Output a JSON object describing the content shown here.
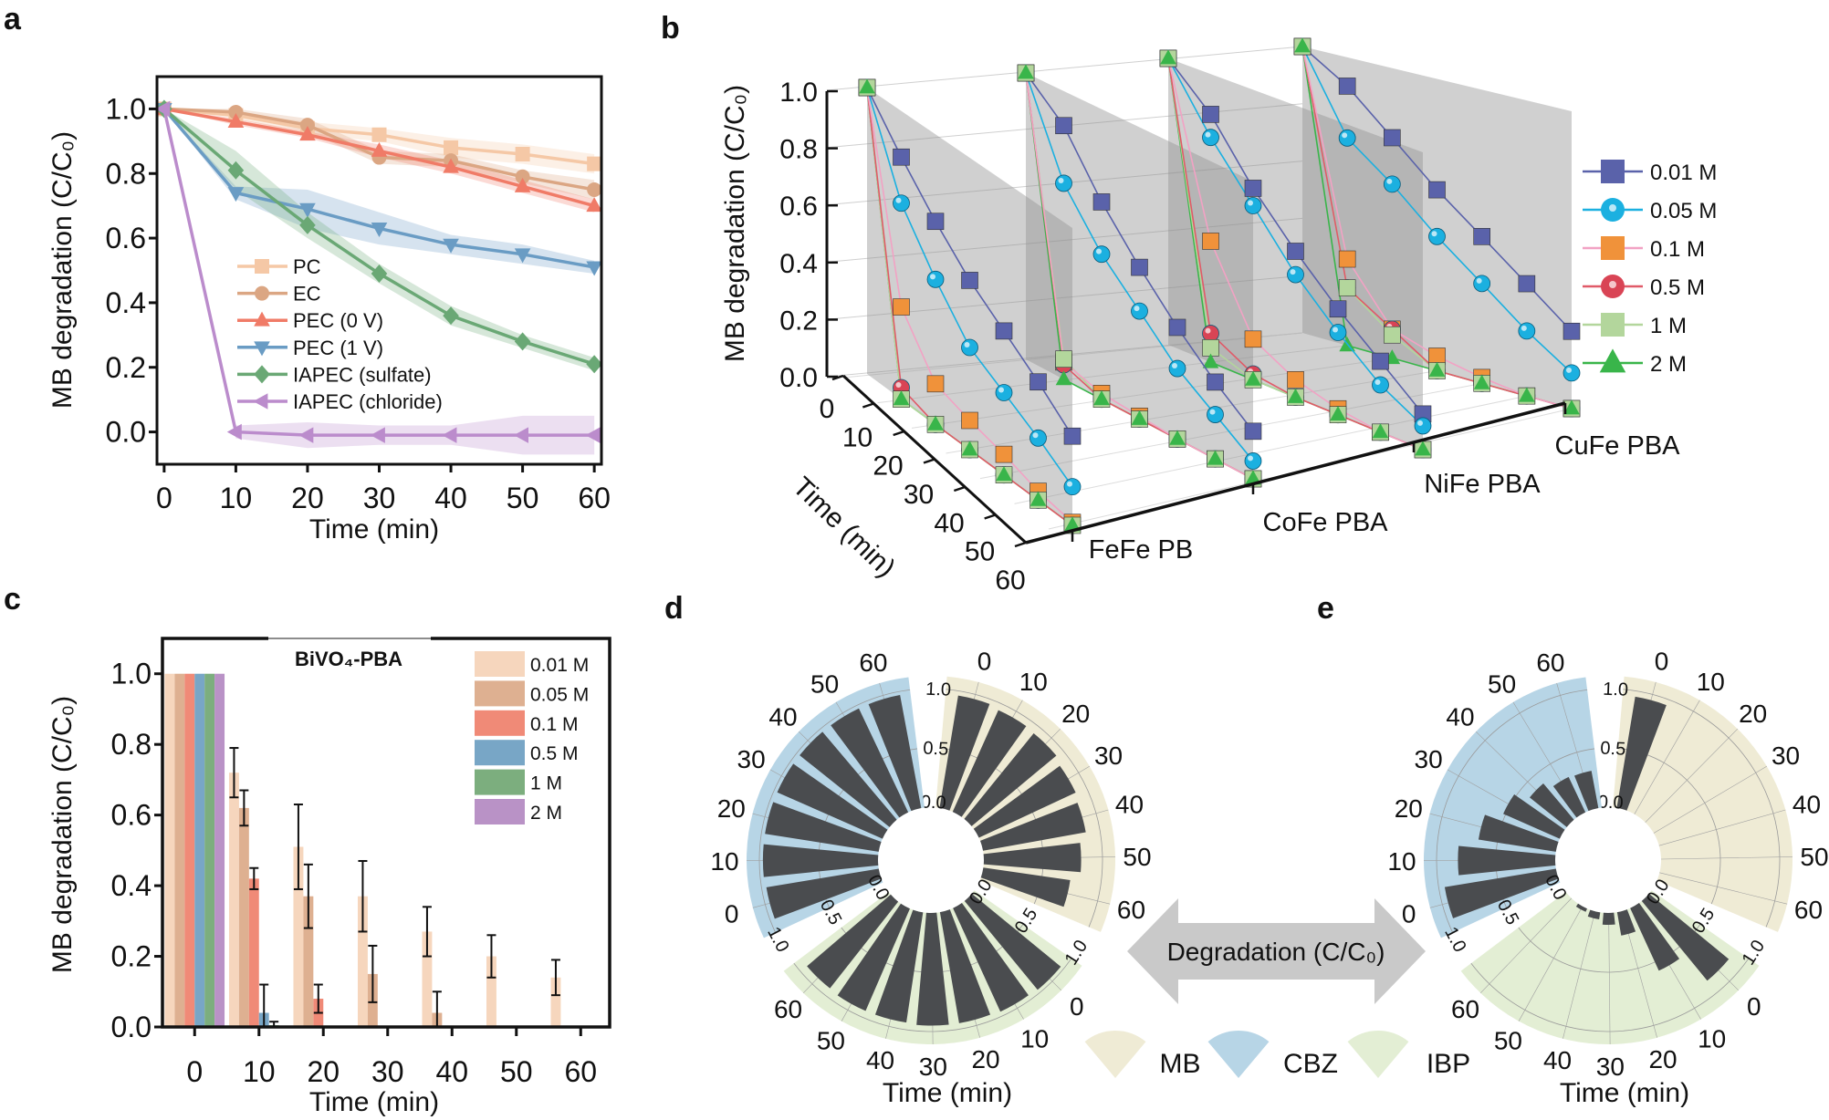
{
  "panel_labels": [
    "a",
    "b",
    "c",
    "d",
    "e"
  ],
  "chart_data": [
    {
      "panel": "a",
      "type": "line",
      "xlabel": "Time (min)",
      "ylabel": "MB degradation (C/C₀)",
      "xlim": [
        -1,
        61
      ],
      "ylim": [
        -0.1,
        1.1
      ],
      "xticks": [
        "0",
        "10",
        "20",
        "30",
        "40",
        "50",
        "60"
      ],
      "yticks": [
        "0.0",
        "0.2",
        "0.4",
        "0.6",
        "0.8",
        "1.0"
      ],
      "x": [
        0,
        10,
        20,
        30,
        40,
        50,
        60
      ],
      "legend_position": "center-left",
      "series": [
        {
          "name": "PC",
          "color": "#f5c8a6",
          "marker": "square",
          "values": [
            1.0,
            0.98,
            0.94,
            0.92,
            0.88,
            0.86,
            0.83
          ],
          "error": [
            0,
            0.01,
            0.02,
            0.02,
            0.03,
            0.03,
            0.03
          ]
        },
        {
          "name": "EC",
          "color": "#dba683",
          "marker": "circle",
          "values": [
            1.0,
            0.99,
            0.95,
            0.85,
            0.84,
            0.79,
            0.75
          ],
          "error": [
            0,
            0.01,
            0.02,
            0.02,
            0.02,
            0.02,
            0.03
          ]
        },
        {
          "name": "PEC (0 V)",
          "color": "#f07b67",
          "marker": "triangle-up",
          "values": [
            1.0,
            0.96,
            0.92,
            0.87,
            0.82,
            0.76,
            0.7
          ],
          "error": [
            0,
            0.01,
            0.01,
            0.02,
            0.02,
            0.02,
            0.02
          ]
        },
        {
          "name": "PEC (1 V)",
          "color": "#6a9cc4",
          "marker": "triangle-down",
          "values": [
            1.0,
            0.74,
            0.69,
            0.63,
            0.58,
            0.55,
            0.51
          ],
          "error": [
            0,
            0.02,
            0.06,
            0.05,
            0.03,
            0.03,
            0.02
          ]
        },
        {
          "name": "IAPEC (sulfate)",
          "color": "#6aa875",
          "marker": "diamond",
          "values": [
            1.0,
            0.81,
            0.64,
            0.49,
            0.36,
            0.28,
            0.21
          ],
          "error": [
            0,
            0.06,
            0.04,
            0.03,
            0.03,
            0.02,
            0.02
          ]
        },
        {
          "name": "IAPEC (chloride)",
          "color": "#bb8ccc",
          "marker": "triangle-left",
          "values": [
            1.0,
            0.0,
            -0.01,
            -0.01,
            -0.01,
            -0.01,
            -0.01
          ],
          "error": [
            0,
            0.02,
            0.04,
            0.03,
            0.03,
            0.06,
            0.06
          ]
        }
      ]
    },
    {
      "panel": "b",
      "type": "line3d",
      "ylabel": "MB degradation (C/C₀)",
      "tlabel": "Time (min)",
      "zlim": [
        0,
        1
      ],
      "zticks": [
        "0.0",
        "0.2",
        "0.4",
        "0.6",
        "0.8",
        "1.0"
      ],
      "tticks": [
        "0",
        "10",
        "20",
        "30",
        "40",
        "50",
        "60"
      ],
      "t": [
        0,
        10,
        20,
        30,
        40,
        50,
        60
      ],
      "categories": [
        "FeFe PB",
        "CoFe PBA",
        "NiFe PBA",
        "CuFe PBA"
      ],
      "legend_position": "right",
      "series": [
        {
          "name": "0.01 M",
          "color": "#5a62aa",
          "line_color": "#5a62aa",
          "marker": "cube",
          "values": [
            [
              1.0,
              0.84,
              0.7,
              0.58,
              0.49,
              0.4,
              0.3
            ],
            [
              1.0,
              0.88,
              0.68,
              0.52,
              0.38,
              0.26,
              0.16
            ],
            [
              1.0,
              0.86,
              0.66,
              0.5,
              0.36,
              0.24,
              0.12
            ],
            [
              1.0,
              0.9,
              0.76,
              0.62,
              0.5,
              0.38,
              0.26
            ]
          ]
        },
        {
          "name": "0.05 M",
          "color": "#1bb0e0",
          "line_color": "#1bb0e0",
          "marker": "sphere",
          "values": [
            [
              1.0,
              0.68,
              0.5,
              0.35,
              0.28,
              0.21,
              0.13
            ],
            [
              1.0,
              0.68,
              0.5,
              0.37,
              0.24,
              0.15,
              0.06
            ],
            [
              1.0,
              0.78,
              0.6,
              0.42,
              0.28,
              0.16,
              0.08
            ],
            [
              1.0,
              0.72,
              0.6,
              0.46,
              0.34,
              0.22,
              0.12
            ]
          ]
        },
        {
          "name": "0.1 M",
          "color": "#f0923a",
          "line_color": "#f2a2c4",
          "marker": "cube",
          "values": [
            [
              1.0,
              0.32,
              0.14,
              0.1,
              0.07,
              0.03,
              0.01
            ],
            [
              1.0,
              0.06,
              0.02,
              0.01,
              0.0,
              0.0,
              0.0
            ],
            [
              1.0,
              0.42,
              0.14,
              0.06,
              0.02,
              0.0,
              0.0
            ],
            [
              1.0,
              0.3,
              0.1,
              0.05,
              0.02,
              0.0,
              0.0
            ]
          ]
        },
        {
          "name": "0.5 M",
          "color": "#d94455",
          "line_color": "#e05a68",
          "marker": "sphere",
          "values": [
            [
              1.0,
              0.04,
              0.0,
              0.0,
              0.0,
              0.0,
              0.0
            ],
            [
              1.0,
              0.05,
              0.0,
              0.0,
              0.0,
              0.0,
              0.0
            ],
            [
              1.0,
              0.1,
              0.02,
              0.0,
              0.0,
              0.0,
              0.0
            ],
            [
              1.0,
              0.2,
              0.1,
              0.0,
              0.0,
              0.0,
              0.0
            ]
          ]
        },
        {
          "name": "1 M",
          "color": "#b3d69c",
          "line_color": "#b3d69c",
          "marker": "cube",
          "values": [
            [
              1.0,
              0.0,
              0.0,
              0.0,
              0.0,
              0.0,
              0.0
            ],
            [
              1.0,
              0.07,
              0.0,
              0.0,
              0.0,
              0.0,
              0.0
            ],
            [
              1.0,
              0.05,
              0.0,
              0.0,
              0.0,
              0.0,
              0.0
            ],
            [
              1.0,
              0.2,
              0.08,
              0.0,
              0.0,
              0.0,
              0.0
            ]
          ]
        },
        {
          "name": "2 M",
          "color": "#39b54a",
          "line_color": "#39b54a",
          "marker": "triangle",
          "values": [
            [
              1.0,
              0.0,
              0.0,
              0.0,
              0.0,
              0.0,
              0.0
            ],
            [
              1.0,
              0.0,
              0.0,
              0.0,
              0.0,
              0.0,
              0.0
            ],
            [
              1.0,
              0.0,
              0.0,
              0.0,
              0.0,
              0.0,
              0.0
            ],
            [
              1.0,
              0.0,
              0.0,
              0.0,
              0.0,
              0.0,
              0.0
            ]
          ]
        }
      ]
    },
    {
      "panel": "c",
      "type": "bar",
      "title": "BiVO₄-PBA",
      "xlabel": "Time (min)",
      "ylabel": "MB degradation (C/C₀)",
      "xlim": [
        -5,
        64.5
      ],
      "ylim": [
        0,
        1.1
      ],
      "xticks": [
        "0",
        "10",
        "20",
        "30",
        "40",
        "50",
        "60"
      ],
      "yticks": [
        "0.0",
        "0.2",
        "0.4",
        "0.6",
        "0.8",
        "1.0"
      ],
      "x": [
        0,
        10,
        20,
        30,
        40,
        50,
        60
      ],
      "legend_position": "top-right",
      "series": [
        {
          "name": "0.01 M",
          "color": "#f6d6bd",
          "values": [
            1.0,
            0.72,
            0.51,
            0.37,
            0.27,
            0.2,
            0.14
          ],
          "error": [
            0,
            0.07,
            0.12,
            0.1,
            0.07,
            0.06,
            0.05
          ]
        },
        {
          "name": "0.05 M",
          "color": "#deb091",
          "values": [
            1.0,
            0.62,
            0.37,
            0.15,
            0.04,
            0,
            0
          ],
          "error": [
            0,
            0.05,
            0.09,
            0.08,
            0.06,
            0,
            0
          ]
        },
        {
          "name": "0.1 M",
          "color": "#f08a77",
          "values": [
            1.0,
            0.42,
            0.08,
            0,
            0,
            0,
            0
          ],
          "error": [
            0,
            0.03,
            0.04,
            0,
            0,
            0,
            0
          ]
        },
        {
          "name": "0.5 M",
          "color": "#78a6c6",
          "values": [
            1.0,
            0.04,
            0,
            0,
            0,
            0,
            0
          ],
          "error": [
            0,
            0.08,
            0,
            0,
            0,
            0,
            0
          ]
        },
        {
          "name": "1 M",
          "color": "#7cae7e",
          "values": [
            1.0,
            0.005,
            0,
            0,
            0,
            0,
            0
          ],
          "error": [
            0,
            0.01,
            0,
            0,
            0,
            0,
            0
          ]
        },
        {
          "name": "2 M",
          "color": "#b992c6",
          "values": [
            1.0,
            0,
            0,
            0,
            0,
            0,
            0
          ],
          "error": [
            0,
            0,
            0,
            0,
            0,
            0,
            0
          ]
        }
      ]
    },
    {
      "panel": "d",
      "type": "polar_bar",
      "xlabel": "Time (min)",
      "time_ticks": [
        "0",
        "10",
        "20",
        "30",
        "40",
        "50",
        "60"
      ],
      "rticks": [
        "0.0",
        "0.5",
        "1.0"
      ],
      "rlim": [
        0,
        1
      ],
      "bar_color": "#4a4c4f",
      "series": [
        {
          "legend_item": 0,
          "values": [
            0.96,
            0.94,
            0.93,
            0.9,
            0.88,
            0.82,
            0.74
          ]
        },
        {
          "legend_item": 2,
          "values": [
            0.97,
            0.96,
            0.95,
            0.95,
            0.94,
            0.94,
            0.93
          ]
        },
        {
          "legend_item": 1,
          "values": [
            0.96,
            0.97,
            0.97,
            0.97,
            0.97,
            0.97,
            0.97
          ]
        }
      ]
    },
    {
      "panel": "e",
      "type": "polar_bar",
      "xlabel": "Time (min)",
      "time_ticks": [
        "0",
        "10",
        "20",
        "30",
        "40",
        "50",
        "60"
      ],
      "rticks": [
        "0.0",
        "0.5",
        "1.0"
      ],
      "rlim": [
        0,
        1
      ],
      "bar_color": "#4a4c4f",
      "series": [
        {
          "legend_item": 0,
          "values": [
            0.95,
            0,
            0,
            0,
            0,
            0,
            0
          ]
        },
        {
          "legend_item": 2,
          "values": [
            0.87,
            0.58,
            0.2,
            0.1,
            0.06,
            0.03,
            0
          ]
        },
        {
          "legend_item": 1,
          "values": [
            0.95,
            0.82,
            0.66,
            0.52,
            0.4,
            0.33,
            0.32
          ]
        }
      ]
    }
  ],
  "shared_legend": {
    "arrow_label": "Degradation (C/C₀)",
    "items": [
      {
        "label": "MB",
        "color": "#efebd5"
      },
      {
        "label": "CBZ",
        "color": "#b7d5e6"
      },
      {
        "label": "IBP",
        "color": "#e3eed4"
      }
    ]
  }
}
